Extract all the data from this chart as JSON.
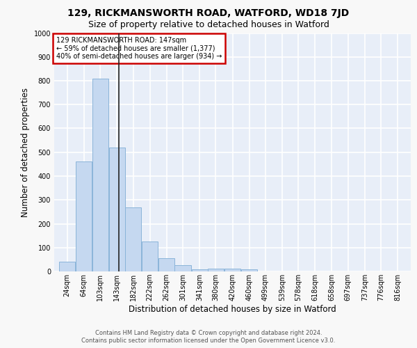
{
  "title": "129, RICKMANSWORTH ROAD, WATFORD, WD18 7JD",
  "subtitle": "Size of property relative to detached houses in Watford",
  "xlabel": "Distribution of detached houses by size in Watford",
  "ylabel": "Number of detached properties",
  "categories": [
    "24sqm",
    "64sqm",
    "103sqm",
    "143sqm",
    "182sqm",
    "222sqm",
    "262sqm",
    "301sqm",
    "341sqm",
    "380sqm",
    "420sqm",
    "460sqm",
    "499sqm",
    "539sqm",
    "578sqm",
    "618sqm",
    "658sqm",
    "697sqm",
    "737sqm",
    "776sqm",
    "816sqm"
  ],
  "values": [
    40,
    460,
    810,
    520,
    270,
    125,
    55,
    25,
    10,
    12,
    12,
    8,
    0,
    0,
    0,
    0,
    0,
    0,
    0,
    0,
    0
  ],
  "bar_color": "#c5d8f0",
  "bar_edge_color": "#8ab4d9",
  "bg_color": "#e8eef8",
  "grid_color": "#ffffff",
  "annotation_text": "129 RICKMANSWORTH ROAD: 147sqm\n← 59% of detached houses are smaller (1,377)\n40% of semi-detached houses are larger (934) →",
  "annotation_box_color": "#ffffff",
  "annotation_border_color": "#cc0000",
  "vline_x": 147,
  "vline_color": "#222222",
  "ylim": [
    0,
    1000
  ],
  "yticks": [
    0,
    100,
    200,
    300,
    400,
    500,
    600,
    700,
    800,
    900,
    1000
  ],
  "footer": "Contains HM Land Registry data © Crown copyright and database right 2024.\nContains public sector information licensed under the Open Government Licence v3.0.",
  "title_fontsize": 10,
  "subtitle_fontsize": 9,
  "tick_fontsize": 7,
  "label_fontsize": 8.5,
  "footer_fontsize": 6,
  "bin_width": 39
}
